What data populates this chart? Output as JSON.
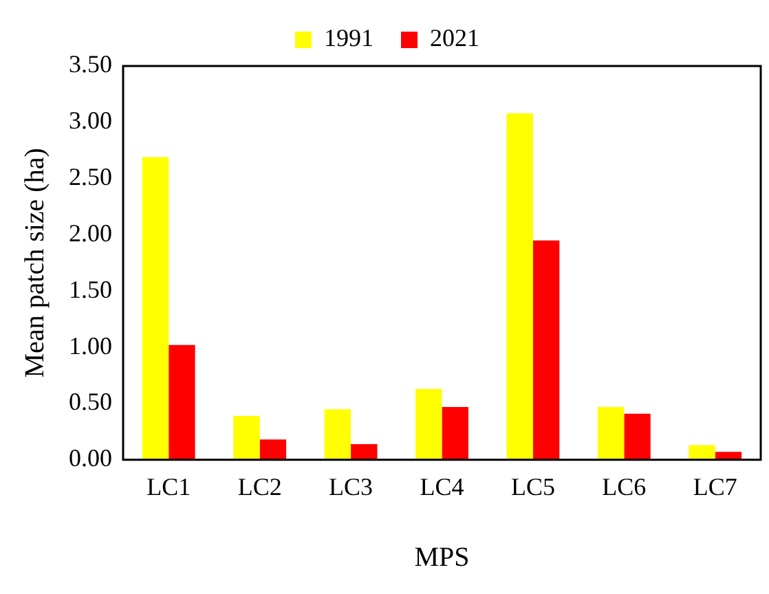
{
  "chart_data": {
    "type": "bar",
    "xlabel": "MPS",
    "ylabel": "Mean patch size (ha)",
    "categories": [
      "LC1",
      "LC2",
      "LC3",
      "LC4",
      "LC5",
      "LC6",
      "LC7"
    ],
    "series": [
      {
        "name": "1991",
        "color": "#ffff00",
        "values": [
          2.69,
          0.39,
          0.45,
          0.63,
          3.08,
          0.47,
          0.13
        ]
      },
      {
        "name": "2021",
        "color": "#ff0000",
        "values": [
          1.02,
          0.18,
          0.14,
          0.47,
          1.95,
          0.41,
          0.07
        ]
      }
    ],
    "ylim": [
      0,
      3.5
    ],
    "yticks": [
      {
        "value": 0,
        "label": "0.00"
      },
      {
        "value": 0.5,
        "label": "0.50"
      },
      {
        "value": 1,
        "label": "1.00"
      },
      {
        "value": 1.5,
        "label": "1.50"
      },
      {
        "value": 2,
        "label": "2.00"
      },
      {
        "value": 2.5,
        "label": "2.50"
      },
      {
        "value": 3,
        "label": "3.00"
      },
      {
        "value": 3.5,
        "label": "3.50"
      }
    ],
    "grid": false,
    "legend": "top"
  }
}
